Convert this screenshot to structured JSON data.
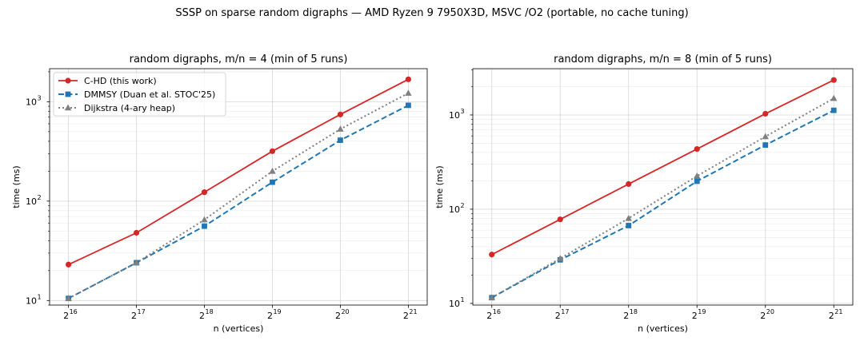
{
  "suptitle": "SSSP on sparse random digraphs — AMD Ryzen 9 7950X3D, MSVC /O2 (portable, no cache tuning)",
  "colors": {
    "chd": "#d62728",
    "dmmsy": "#1f77b4",
    "dijkstra": "#7f7f7f"
  },
  "chart_data": [
    {
      "type": "line",
      "title": "random digraphs, m/n = 4  (min of 5 runs)",
      "xlabel": "n (vertices)",
      "ylabel": "time (ms)",
      "yscale": "log",
      "grid": true,
      "legend": "top-left",
      "x_exponents": [
        16,
        17,
        18,
        19,
        20,
        21
      ],
      "x_tick_base": "2",
      "y_ticks": [
        {
          "v": 10,
          "label": "10",
          "exp": "1"
        },
        {
          "v": 100,
          "label": "10",
          "exp": "2"
        },
        {
          "v": 1000,
          "label": "10",
          "exp": "3"
        }
      ],
      "series": [
        {
          "name": "C-HD (this work)",
          "key": "chd",
          "marker": "circle",
          "style": "solid",
          "values": [
            23,
            48,
            123,
            318,
            745,
            1680
          ]
        },
        {
          "name": "DMMSY (Duan et al. STOC'25)",
          "key": "dmmsy",
          "marker": "square",
          "style": "dashed",
          "values": [
            10.5,
            24,
            56,
            155,
            410,
            920
          ]
        },
        {
          "name": "Dijkstra (4-ary heap)",
          "key": "dijkstra",
          "marker": "triangle",
          "style": "dotted",
          "values": [
            10.5,
            24,
            65,
            200,
            530,
            1220
          ]
        }
      ]
    },
    {
      "type": "line",
      "title": "random digraphs, m/n = 8  (min of 5 runs)",
      "xlabel": "n (vertices)",
      "ylabel": "time (ms)",
      "yscale": "log",
      "grid": true,
      "legend": "none",
      "x_exponents": [
        16,
        17,
        18,
        19,
        20,
        21
      ],
      "x_tick_base": "2",
      "y_ticks": [
        {
          "v": 10,
          "label": "10",
          "exp": "1"
        },
        {
          "v": 100,
          "label": "10",
          "exp": "2"
        },
        {
          "v": 1000,
          "label": "10",
          "exp": "3"
        }
      ],
      "series": [
        {
          "name": "C-HD (this work)",
          "key": "chd",
          "marker": "circle",
          "style": "solid",
          "values": [
            33,
            78,
            185,
            435,
            1030,
            2350
          ]
        },
        {
          "name": "DMMSY (Duan et al. STOC'25)",
          "key": "dmmsy",
          "marker": "square",
          "style": "dashed",
          "values": [
            11.5,
            29,
            67,
            198,
            480,
            1120
          ]
        },
        {
          "name": "Dijkstra (4-ary heap)",
          "key": "dijkstra",
          "marker": "triangle",
          "style": "dotted",
          "values": [
            11.5,
            30,
            80,
            225,
            590,
            1500
          ]
        }
      ]
    }
  ]
}
